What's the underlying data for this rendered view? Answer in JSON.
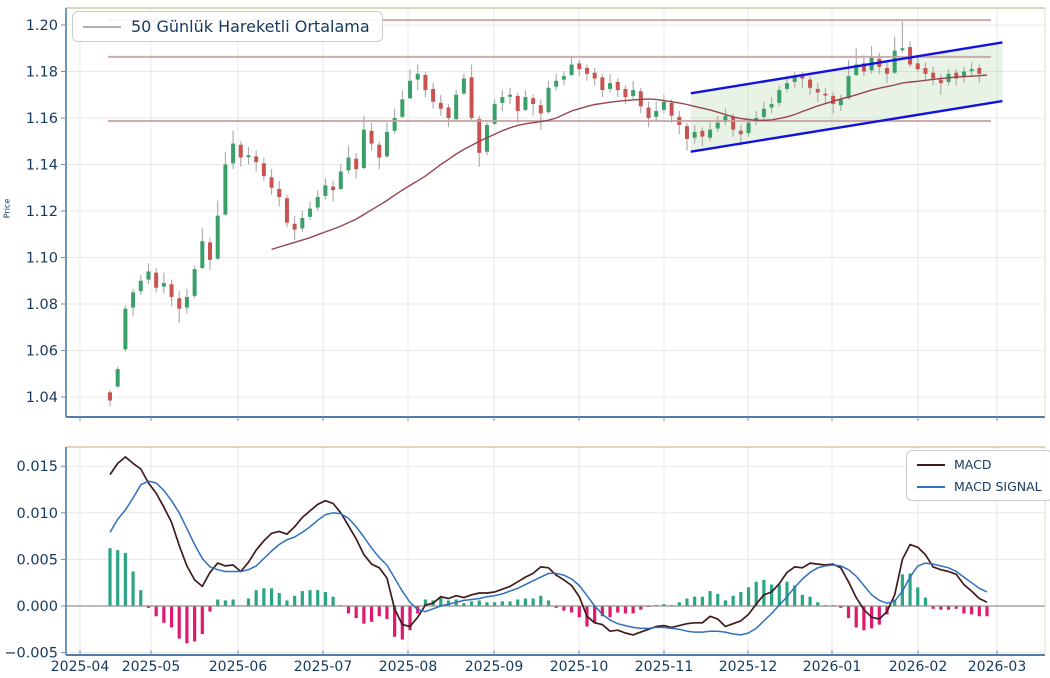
{
  "chart_data": {
    "type": "candlestick_with_macd",
    "price_panel": {
      "ylabel": "Price",
      "legend_label": "50 Günlük Hareketli Ortalama",
      "y_tick_labels": [
        "1.04",
        "1.06",
        "1.08",
        "1.10",
        "1.12",
        "1.14",
        "1.16",
        "1.18",
        "1.20"
      ],
      "y_tick_values": [
        1.04,
        1.06,
        1.08,
        1.1,
        1.12,
        1.14,
        1.16,
        1.18,
        1.2
      ],
      "ylim": [
        1.03,
        1.208
      ],
      "hlines": [
        1.2021,
        1.1863,
        1.1587
      ],
      "channel": {
        "start_index": 75.5,
        "end_index": 116,
        "top_start": 1.1706,
        "top_end": 1.1925,
        "bottom_start": 1.1455,
        "bottom_end": 1.1673
      },
      "candles": [
        [
          1.042,
          1.043,
          1.036,
          1.0385
        ],
        [
          1.0445,
          1.053,
          1.044,
          1.052
        ],
        [
          1.0605,
          1.0795,
          1.0595,
          1.078
        ],
        [
          1.0785,
          1.0865,
          1.075,
          1.085
        ],
        [
          1.0855,
          1.0925,
          1.084,
          1.09
        ],
        [
          1.0905,
          1.0975,
          1.0885,
          1.094
        ],
        [
          1.0935,
          1.0955,
          1.085,
          1.087
        ],
        [
          1.0875,
          1.0935,
          1.0845,
          1.089
        ],
        [
          1.0885,
          1.0905,
          1.079,
          1.083
        ],
        [
          1.0825,
          1.0855,
          1.072,
          1.078
        ],
        [
          1.0785,
          1.0865,
          1.076,
          1.083
        ],
        [
          1.0835,
          1.0965,
          1.0825,
          1.095
        ],
        [
          1.0955,
          1.1125,
          1.095,
          1.107
        ],
        [
          1.1065,
          1.1085,
          1.0945,
          1.099
        ],
        [
          1.0995,
          1.1245,
          1.099,
          1.118
        ],
        [
          1.1185,
          1.1455,
          1.118,
          1.14
        ],
        [
          1.1405,
          1.1545,
          1.138,
          1.149
        ],
        [
          1.1485,
          1.15,
          1.139,
          1.143
        ],
        [
          1.1435,
          1.1475,
          1.14,
          1.144
        ],
        [
          1.1435,
          1.146,
          1.137,
          1.141
        ],
        [
          1.1405,
          1.143,
          1.133,
          1.135
        ],
        [
          1.1345,
          1.138,
          1.127,
          1.13
        ],
        [
          1.1295,
          1.133,
          1.122,
          1.126
        ],
        [
          1.1255,
          1.127,
          1.113,
          1.115
        ],
        [
          1.1145,
          1.118,
          1.1075,
          1.112
        ],
        [
          1.1125,
          1.12,
          1.111,
          1.117
        ],
        [
          1.1175,
          1.124,
          1.116,
          1.121
        ],
        [
          1.1215,
          1.129,
          1.12,
          1.126
        ],
        [
          1.1265,
          1.134,
          1.125,
          1.131
        ],
        [
          1.1305,
          1.133,
          1.124,
          1.129
        ],
        [
          1.1295,
          1.14,
          1.129,
          1.137
        ],
        [
          1.1375,
          1.148,
          1.136,
          1.143
        ],
        [
          1.1425,
          1.145,
          1.134,
          1.138
        ],
        [
          1.1385,
          1.161,
          1.138,
          1.155
        ],
        [
          1.1545,
          1.158,
          1.146,
          1.149
        ],
        [
          1.1485,
          1.15,
          1.138,
          1.143
        ],
        [
          1.1435,
          1.158,
          1.143,
          1.154
        ],
        [
          1.1545,
          1.164,
          1.153,
          1.16
        ],
        [
          1.1605,
          1.172,
          1.16,
          1.168
        ],
        [
          1.1685,
          1.181,
          1.168,
          1.176
        ],
        [
          1.1765,
          1.183,
          1.172,
          1.179
        ],
        [
          1.1785,
          1.18,
          1.169,
          1.172
        ],
        [
          1.1725,
          1.175,
          1.164,
          1.167
        ],
        [
          1.1665,
          1.17,
          1.161,
          1.164
        ],
        [
          1.1645,
          1.166,
          1.156,
          1.16
        ],
        [
          1.1595,
          1.172,
          1.159,
          1.17
        ],
        [
          1.1705,
          1.179,
          1.17,
          1.177
        ],
        [
          1.1775,
          1.183,
          1.159,
          1.16
        ],
        [
          1.1595,
          1.161,
          1.139,
          1.145
        ],
        [
          1.1455,
          1.158,
          1.144,
          1.157
        ],
        [
          1.1575,
          1.168,
          1.157,
          1.166
        ],
        [
          1.1665,
          1.172,
          1.163,
          1.169
        ],
        [
          1.1695,
          1.173,
          1.166,
          1.17
        ],
        [
          1.1695,
          1.171,
          1.158,
          1.163
        ],
        [
          1.1635,
          1.172,
          1.163,
          1.169
        ],
        [
          1.1685,
          1.17,
          1.161,
          1.166
        ],
        [
          1.1655,
          1.168,
          1.155,
          1.162
        ],
        [
          1.1625,
          1.176,
          1.162,
          1.173
        ],
        [
          1.1735,
          1.179,
          1.172,
          1.176
        ],
        [
          1.1765,
          1.18,
          1.174,
          1.178
        ],
        [
          1.1785,
          1.1862,
          1.178,
          1.183
        ],
        [
          1.1835,
          1.185,
          1.178,
          1.181
        ],
        [
          1.1815,
          1.183,
          1.176,
          1.179
        ],
        [
          1.1795,
          1.1815,
          1.174,
          1.177
        ],
        [
          1.1775,
          1.179,
          1.169,
          1.172
        ],
        [
          1.1725,
          1.179,
          1.171,
          1.175
        ],
        [
          1.1755,
          1.177,
          1.169,
          1.172
        ],
        [
          1.1725,
          1.174,
          1.166,
          1.169
        ],
        [
          1.1695,
          1.176,
          1.168,
          1.172
        ],
        [
          1.1715,
          1.173,
          1.162,
          1.165
        ],
        [
          1.1645,
          1.167,
          1.156,
          1.16
        ],
        [
          1.1605,
          1.167,
          1.159,
          1.163
        ],
        [
          1.1635,
          1.17,
          1.162,
          1.167
        ],
        [
          1.1665,
          1.168,
          1.158,
          1.161
        ],
        [
          1.1605,
          1.163,
          1.153,
          1.157
        ],
        [
          1.1565,
          1.158,
          1.146,
          1.151
        ],
        [
          1.1515,
          1.157,
          1.149,
          1.154
        ],
        [
          1.1545,
          1.156,
          1.148,
          1.152
        ],
        [
          1.1515,
          1.158,
          1.15,
          1.155
        ],
        [
          1.1555,
          1.161,
          1.154,
          1.158
        ],
        [
          1.1585,
          1.164,
          1.157,
          1.161
        ],
        [
          1.1605,
          1.162,
          1.152,
          1.155
        ],
        [
          1.1545,
          1.157,
          1.148,
          1.153
        ],
        [
          1.1535,
          1.16,
          1.152,
          1.158
        ],
        [
          1.1585,
          1.163,
          1.157,
          1.16
        ],
        [
          1.1605,
          1.167,
          1.159,
          1.164
        ],
        [
          1.1645,
          1.169,
          1.162,
          1.166
        ],
        [
          1.1665,
          1.174,
          1.165,
          1.172
        ],
        [
          1.1725,
          1.178,
          1.171,
          1.175
        ],
        [
          1.1755,
          1.18,
          1.173,
          1.178
        ],
        [
          1.1785,
          1.18,
          1.173,
          1.177
        ],
        [
          1.1765,
          1.178,
          1.17,
          1.173
        ],
        [
          1.1725,
          1.175,
          1.167,
          1.171
        ],
        [
          1.1705,
          1.173,
          1.166,
          1.17
        ],
        [
          1.1695,
          1.171,
          1.162,
          1.166
        ],
        [
          1.1655,
          1.17,
          1.163,
          1.168
        ],
        [
          1.1685,
          1.185,
          1.168,
          1.178
        ],
        [
          1.1785,
          1.19,
          1.178,
          1.183
        ],
        [
          1.1835,
          1.187,
          1.178,
          1.18
        ],
        [
          1.1805,
          1.191,
          1.179,
          1.186
        ],
        [
          1.1855,
          1.188,
          1.179,
          1.182
        ],
        [
          1.1815,
          1.184,
          1.175,
          1.179
        ],
        [
          1.1795,
          1.195,
          1.179,
          1.189
        ],
        [
          1.1895,
          1.2015,
          1.188,
          1.19
        ],
        [
          1.1905,
          1.193,
          1.182,
          1.183
        ],
        [
          1.1835,
          1.187,
          1.18,
          1.181
        ],
        [
          1.1815,
          1.184,
          1.176,
          1.179
        ],
        [
          1.1795,
          1.182,
          1.174,
          1.177
        ],
        [
          1.1765,
          1.179,
          1.17,
          1.175
        ],
        [
          1.1755,
          1.181,
          1.174,
          1.179
        ],
        [
          1.1795,
          1.181,
          1.174,
          1.177
        ],
        [
          1.1775,
          1.182,
          1.175,
          1.18
        ],
        [
          1.1805,
          1.184,
          1.178,
          1.181
        ],
        [
          1.1815,
          1.183,
          1.175,
          1.179
        ]
      ],
      "ma50": [
        null,
        null,
        null,
        null,
        null,
        null,
        null,
        null,
        null,
        null,
        null,
        null,
        null,
        null,
        null,
        null,
        null,
        null,
        null,
        null,
        null,
        1.1035,
        1.1045,
        1.1055,
        1.1065,
        1.1075,
        1.1085,
        1.1098,
        1.111,
        1.1122,
        1.1135,
        1.115,
        1.1165,
        1.1185,
        1.1205,
        1.1225,
        1.1245,
        1.1268,
        1.129,
        1.131,
        1.133,
        1.135,
        1.1375,
        1.14,
        1.1422,
        1.1445,
        1.1465,
        1.1482,
        1.15,
        1.1515,
        1.153,
        1.1545,
        1.1558,
        1.1568,
        1.1575,
        1.158,
        1.1585,
        1.159,
        1.16,
        1.1615,
        1.163,
        1.164,
        1.165,
        1.1658,
        1.1663,
        1.1668,
        1.1672,
        1.1675,
        1.1678,
        1.168,
        1.1682,
        1.168,
        1.1675,
        1.167,
        1.1665,
        1.1658,
        1.165,
        1.1642,
        1.1635,
        1.1625,
        1.1615,
        1.1605,
        1.1598,
        1.1593,
        1.159,
        1.159,
        1.1592,
        1.1598,
        1.1605,
        1.1615,
        1.1628,
        1.164,
        1.1652,
        1.1662,
        1.1672,
        1.1682,
        1.169,
        1.17,
        1.171,
        1.172,
        1.1728,
        1.1735,
        1.1742,
        1.175,
        1.1755,
        1.1758,
        1.1762,
        1.1766,
        1.177,
        1.1773,
        1.1776,
        1.1778,
        1.178,
        1.1782,
        1.1785
      ]
    },
    "macd_panel": {
      "legend": [
        {
          "label": "MACD"
        },
        {
          "label": "MACD SIGNAL"
        }
      ],
      "y_tick_labels": [
        "−0.005",
        "0.000",
        "0.005",
        "0.010",
        "0.015"
      ],
      "y_tick_values": [
        -0.005,
        0.0,
        0.005,
        0.01,
        0.015
      ],
      "ylim": [
        -0.00525,
        0.01705
      ],
      "value_scale": 0.001,
      "histogram_rule": "macd - signal",
      "macd": [
        14.1,
        15.3,
        16.0,
        15.3,
        14.7,
        13.2,
        12.1,
        10.6,
        9.0,
        6.5,
        4.3,
        2.8,
        2.1,
        3.6,
        4.6,
        4.3,
        4.4,
        3.7,
        4.7,
        6.0,
        7.0,
        7.8,
        8.0,
        7.7,
        8.5,
        9.5,
        10.2,
        10.9,
        11.3,
        11.0,
        10.0,
        8.6,
        7.2,
        5.5,
        4.5,
        4.1,
        3.0,
        -0.3,
        -2.0,
        -2.2,
        -1.2,
        0.1,
        0.3,
        1.0,
        0.8,
        1.1,
        0.9,
        1.2,
        1.4,
        1.4,
        1.5,
        1.8,
        2.1,
        2.6,
        3.1,
        3.5,
        4.2,
        4.1,
        3.3,
        2.8,
        2.2,
        1.0,
        -1.1,
        -1.8,
        -2.0,
        -2.7,
        -2.6,
        -2.9,
        -3.1,
        -2.8,
        -2.5,
        -2.2,
        -2.1,
        -2.3,
        -2.1,
        -1.9,
        -1.8,
        -1.8,
        -1.1,
        -1.4,
        -2.2,
        -1.9,
        -1.6,
        -0.9,
        0.2,
        1.2,
        1.5,
        2.4,
        3.6,
        4.2,
        4.1,
        4.6,
        4.5,
        4.4,
        4.5,
        4.1,
        2.6,
        0.9,
        -0.4,
        -1.2,
        -1.4,
        -0.6,
        1.2,
        5.0,
        6.6,
        6.3,
        5.5,
        4.2,
        3.9,
        3.7,
        3.4,
        2.3,
        1.6,
        0.8,
        0.4
      ],
      "signal": [
        7.9,
        9.3,
        10.3,
        11.6,
        13.0,
        13.4,
        13.2,
        12.4,
        11.3,
        10.0,
        8.3,
        6.6,
        5.1,
        4.2,
        3.9,
        3.7,
        3.7,
        3.7,
        3.9,
        4.3,
        5.1,
        5.9,
        6.6,
        7.1,
        7.4,
        7.9,
        8.5,
        9.2,
        9.8,
        10.0,
        9.9,
        9.4,
        8.5,
        7.4,
        6.2,
        5.2,
        4.4,
        3.0,
        1.6,
        0.4,
        -0.4,
        -0.6,
        -0.3,
        0.0,
        0.2,
        0.4,
        0.6,
        0.7,
        0.8,
        1.0,
        1.1,
        1.3,
        1.6,
        1.9,
        2.3,
        2.7,
        3.1,
        3.5,
        3.5,
        3.3,
        2.9,
        2.2,
        1.1,
        0.0,
        -0.9,
        -1.5,
        -1.9,
        -2.1,
        -2.3,
        -2.4,
        -2.4,
        -2.3,
        -2.3,
        -2.4,
        -2.5,
        -2.7,
        -2.8,
        -2.8,
        -2.7,
        -2.7,
        -2.8,
        -3.0,
        -3.1,
        -2.9,
        -2.4,
        -1.6,
        -0.8,
        0.1,
        1.0,
        2.0,
        2.9,
        3.6,
        4.1,
        4.3,
        4.4,
        4.3,
        3.9,
        3.2,
        2.2,
        1.2,
        0.6,
        0.3,
        0.5,
        1.6,
        3.1,
        4.3,
        4.6,
        4.5,
        4.3,
        4.1,
        3.7,
        3.1,
        2.5,
        1.9,
        1.5
      ]
    },
    "x_axis": {
      "labels": [
        "2025-04",
        "2025-05",
        "2025-06",
        "2025-07",
        "2025-08",
        "2025-09",
        "2025-10",
        "2025-11",
        "2025-12",
        "2026-01",
        "2026-02",
        "2026-03"
      ]
    },
    "colors": {
      "candle_up": "#3aa06a",
      "candle_down": "#c9544f",
      "wick": "#a8a8a8",
      "ma_line": "#96454e",
      "hline": "#c49e9e",
      "channel_line": "#1212e0",
      "channel_fill": "rgba(130,190,110,0.18)",
      "macd_line": "#401b1b",
      "signal_line": "#2f6fbe",
      "hist_pos": "#2ca584",
      "hist_neg": "#e0196e",
      "text": "#15395e",
      "grid": "#e9e9e9",
      "zero_line": "#909090",
      "spine_tan": "#d3c7a3",
      "spine_blue": "#4f7cab"
    }
  }
}
